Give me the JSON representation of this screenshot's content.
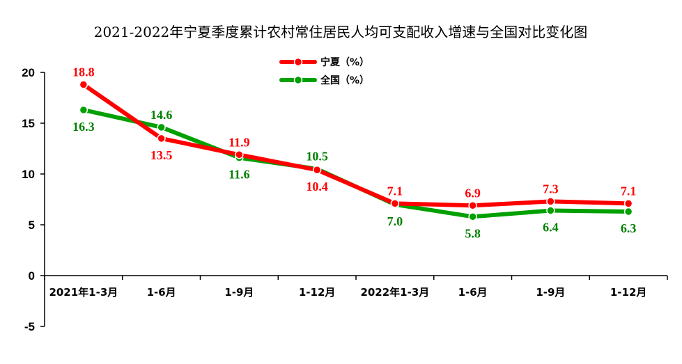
{
  "chart_data": {
    "type": "line",
    "title": "2021-2022年宁夏季度累计农村常住居民人均可支配收入增速与全国对比变化图",
    "categories": [
      "2021年1-3月",
      "1-6月",
      "1-9月",
      "1-12月",
      "2022年1-3月",
      "1-6月",
      "1-9月",
      "1-12月"
    ],
    "ylim": [
      -5,
      20
    ],
    "yticks": [
      "-5",
      "0",
      "5",
      "10",
      "15",
      "20"
    ],
    "grid": false,
    "legend_position": "top-center",
    "series": [
      {
        "name": "宁夏（%）",
        "color": "#ff0000",
        "values": [
          18.8,
          13.5,
          11.9,
          10.4,
          7.1,
          6.9,
          7.3,
          7.1
        ],
        "labels": [
          "18.8",
          "13.5",
          "11.9",
          "10.4",
          "7.1",
          "6.9",
          "7.3",
          "7.1"
        ]
      },
      {
        "name": "全国（%）",
        "color": "#00a000",
        "values": [
          16.3,
          14.6,
          11.6,
          10.5,
          7.0,
          5.8,
          6.4,
          6.3
        ],
        "labels": [
          "16.3",
          "14.6",
          "11.6",
          "10.5",
          "7.0",
          "5.8",
          "6.4",
          "6.3"
        ]
      }
    ]
  }
}
